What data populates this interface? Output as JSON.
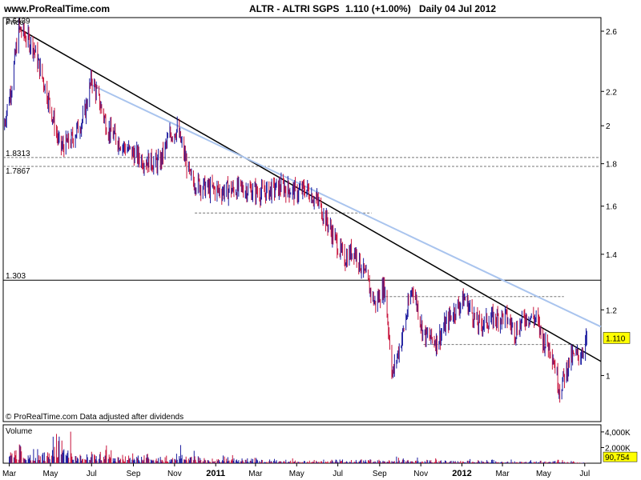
{
  "header": {
    "site": "www.ProRealTime.com",
    "title": "ALTR - ALTRI SGPS",
    "price_change": "1.110 (+1.00%)",
    "period": "Daily  04 Jul 2012"
  },
  "footer_note": "© ProRealTime.com  Data adjusted after dividends",
  "colors": {
    "up_bar": "#1a1a9e",
    "down_bar": "#c8143c",
    "trend_black": "#000000",
    "trend_light": "#a9c4ee",
    "last_price_box": "#ffff00"
  },
  "chart_data": [
    {
      "type": "line",
      "panel": "price",
      "title": "Price",
      "ylim": [
        0.88,
        2.7
      ],
      "y_scale": "log",
      "y_ticks": [
        "2.6",
        "2.2",
        "2",
        "1.8",
        "1.6",
        "1.4",
        "1.2",
        "1"
      ],
      "y_tick_values": [
        2.6,
        2.2,
        2.0,
        1.8,
        1.6,
        1.4,
        1.2,
        1.0
      ],
      "x_ticks": [
        "Mar",
        "May",
        "Jul",
        "Sep",
        "Nov",
        "2011",
        "Mar",
        "May",
        "Jul",
        "Sep",
        "Nov",
        "2012",
        "Mar",
        "May",
        "Jul"
      ],
      "x_tick_dates": [
        "2010-03-01",
        "2010-05-01",
        "2010-07-01",
        "2010-09-01",
        "2010-11-01",
        "2011-01-01",
        "2011-03-01",
        "2011-05-01",
        "2011-07-01",
        "2011-09-01",
        "2011-11-01",
        "2012-01-01",
        "2012-03-01",
        "2012-05-01",
        "2012-07-01"
      ],
      "x_range": [
        "2010-02-20",
        "2012-07-25"
      ],
      "series": [
        {
          "name": "",
          "x": [
            "2010-02-20",
            "2010-03-05",
            "2010-03-15",
            "2010-04-05",
            "2010-04-25",
            "2010-05-15",
            "2010-06-01",
            "2010-06-20",
            "2010-07-01",
            "2010-07-25",
            "2010-08-20",
            "2010-09-15",
            "2010-10-10",
            "2010-10-25",
            "2010-11-05",
            "2010-11-25",
            "2010-12-20",
            "2011-01-10",
            "2011-02-10",
            "2011-03-10",
            "2011-04-10",
            "2011-05-01",
            "2011-05-15",
            "2011-06-01",
            "2011-06-20",
            "2011-07-10",
            "2011-07-25",
            "2011-08-10",
            "2011-08-25",
            "2011-09-08",
            "2011-09-20",
            "2011-10-05",
            "2011-10-20",
            "2011-11-05",
            "2011-11-25",
            "2011-12-15",
            "2012-01-05",
            "2012-01-25",
            "2012-02-15",
            "2012-03-05",
            "2012-03-20",
            "2012-04-05",
            "2012-04-20",
            "2012-05-01",
            "2012-05-12",
            "2012-05-25",
            "2012-06-10",
            "2012-06-25",
            "2012-07-04"
          ],
          "values": [
            1.98,
            2.25,
            2.62,
            2.5,
            2.2,
            1.88,
            1.92,
            2.05,
            2.28,
            1.98,
            1.88,
            1.82,
            1.8,
            1.95,
            1.98,
            1.72,
            1.68,
            1.67,
            1.68,
            1.66,
            1.69,
            1.66,
            1.68,
            1.62,
            1.5,
            1.38,
            1.42,
            1.32,
            1.22,
            1.28,
            1.0,
            1.12,
            1.28,
            1.12,
            1.1,
            1.18,
            1.24,
            1.15,
            1.17,
            1.18,
            1.13,
            1.18,
            1.17,
            1.1,
            1.08,
            0.96,
            1.05,
            1.06,
            1.11
          ]
        }
      ],
      "annotations": [
        {
          "label": "2.6439",
          "value": 2.6439
        },
        {
          "label": "1.8313",
          "value": 1.8313
        },
        {
          "label": "1.7867",
          "value": 1.7867
        },
        {
          "label": "1.303",
          "value": 1.303
        },
        {
          "label": "1.110",
          "value": 1.11
        }
      ],
      "horizontal_levels": [
        {
          "value": 1.8313,
          "style": "dashed",
          "from": "2010-02-20",
          "to": "2012-07-25"
        },
        {
          "value": 1.7867,
          "style": "dashed",
          "from": "2010-02-20",
          "to": "2012-07-25"
        },
        {
          "value": 1.303,
          "style": "solid",
          "from": "2010-02-20",
          "to": "2012-07-25"
        },
        {
          "value": 1.57,
          "style": "dashed",
          "from": "2010-12-01",
          "to": "2011-08-20"
        },
        {
          "value": 1.245,
          "style": "dashed",
          "from": "2011-09-10",
          "to": "2012-05-31"
        },
        {
          "value": 1.09,
          "style": "dashed",
          "from": "2011-11-05",
          "to": "2012-07-04"
        }
      ],
      "trend_lines": [
        {
          "color": "black",
          "x": [
            "2010-03-15",
            "2012-07-25"
          ],
          "y": [
            2.62,
            1.04
          ]
        },
        {
          "color": "lightblue",
          "x": [
            "2010-07-01",
            "2012-07-25"
          ],
          "y": [
            2.24,
            1.145
          ]
        }
      ]
    },
    {
      "type": "bar",
      "panel": "volume",
      "title": "Volume",
      "y_ticks": [
        "4,000K",
        "2,000K"
      ],
      "y_tick_values": [
        4000,
        2000
      ],
      "ylim": [
        0,
        4500
      ],
      "last_value_label": "90,754",
      "last_value": 90.754,
      "x_range": [
        "2010-02-20",
        "2012-07-25"
      ],
      "series": [
        {
          "name": "",
          "x": [
            "2010-03-01",
            "2010-04-01",
            "2010-05-01",
            "2010-06-01",
            "2010-07-01",
            "2010-08-01",
            "2010-09-01",
            "2010-10-01",
            "2010-11-01",
            "2010-12-01",
            "2011-01-01",
            "2011-02-01",
            "2011-03-01",
            "2011-04-01",
            "2011-05-01",
            "2011-06-01",
            "2011-07-01",
            "2011-08-01",
            "2011-09-01",
            "2011-10-01",
            "2011-11-01",
            "2011-12-01",
            "2012-01-01",
            "2012-02-01",
            "2012-03-01",
            "2012-04-01",
            "2012-05-01",
            "2012-06-01",
            "2012-07-01"
          ],
          "values": [
            2600,
            1900,
            4500,
            1900,
            2200,
            1300,
            1600,
            1200,
            2400,
            1000,
            1200,
            900,
            700,
            600,
            500,
            500,
            600,
            700,
            900,
            700,
            600,
            500,
            600,
            500,
            450,
            400,
            500,
            300,
            100
          ]
        }
      ]
    }
  ]
}
